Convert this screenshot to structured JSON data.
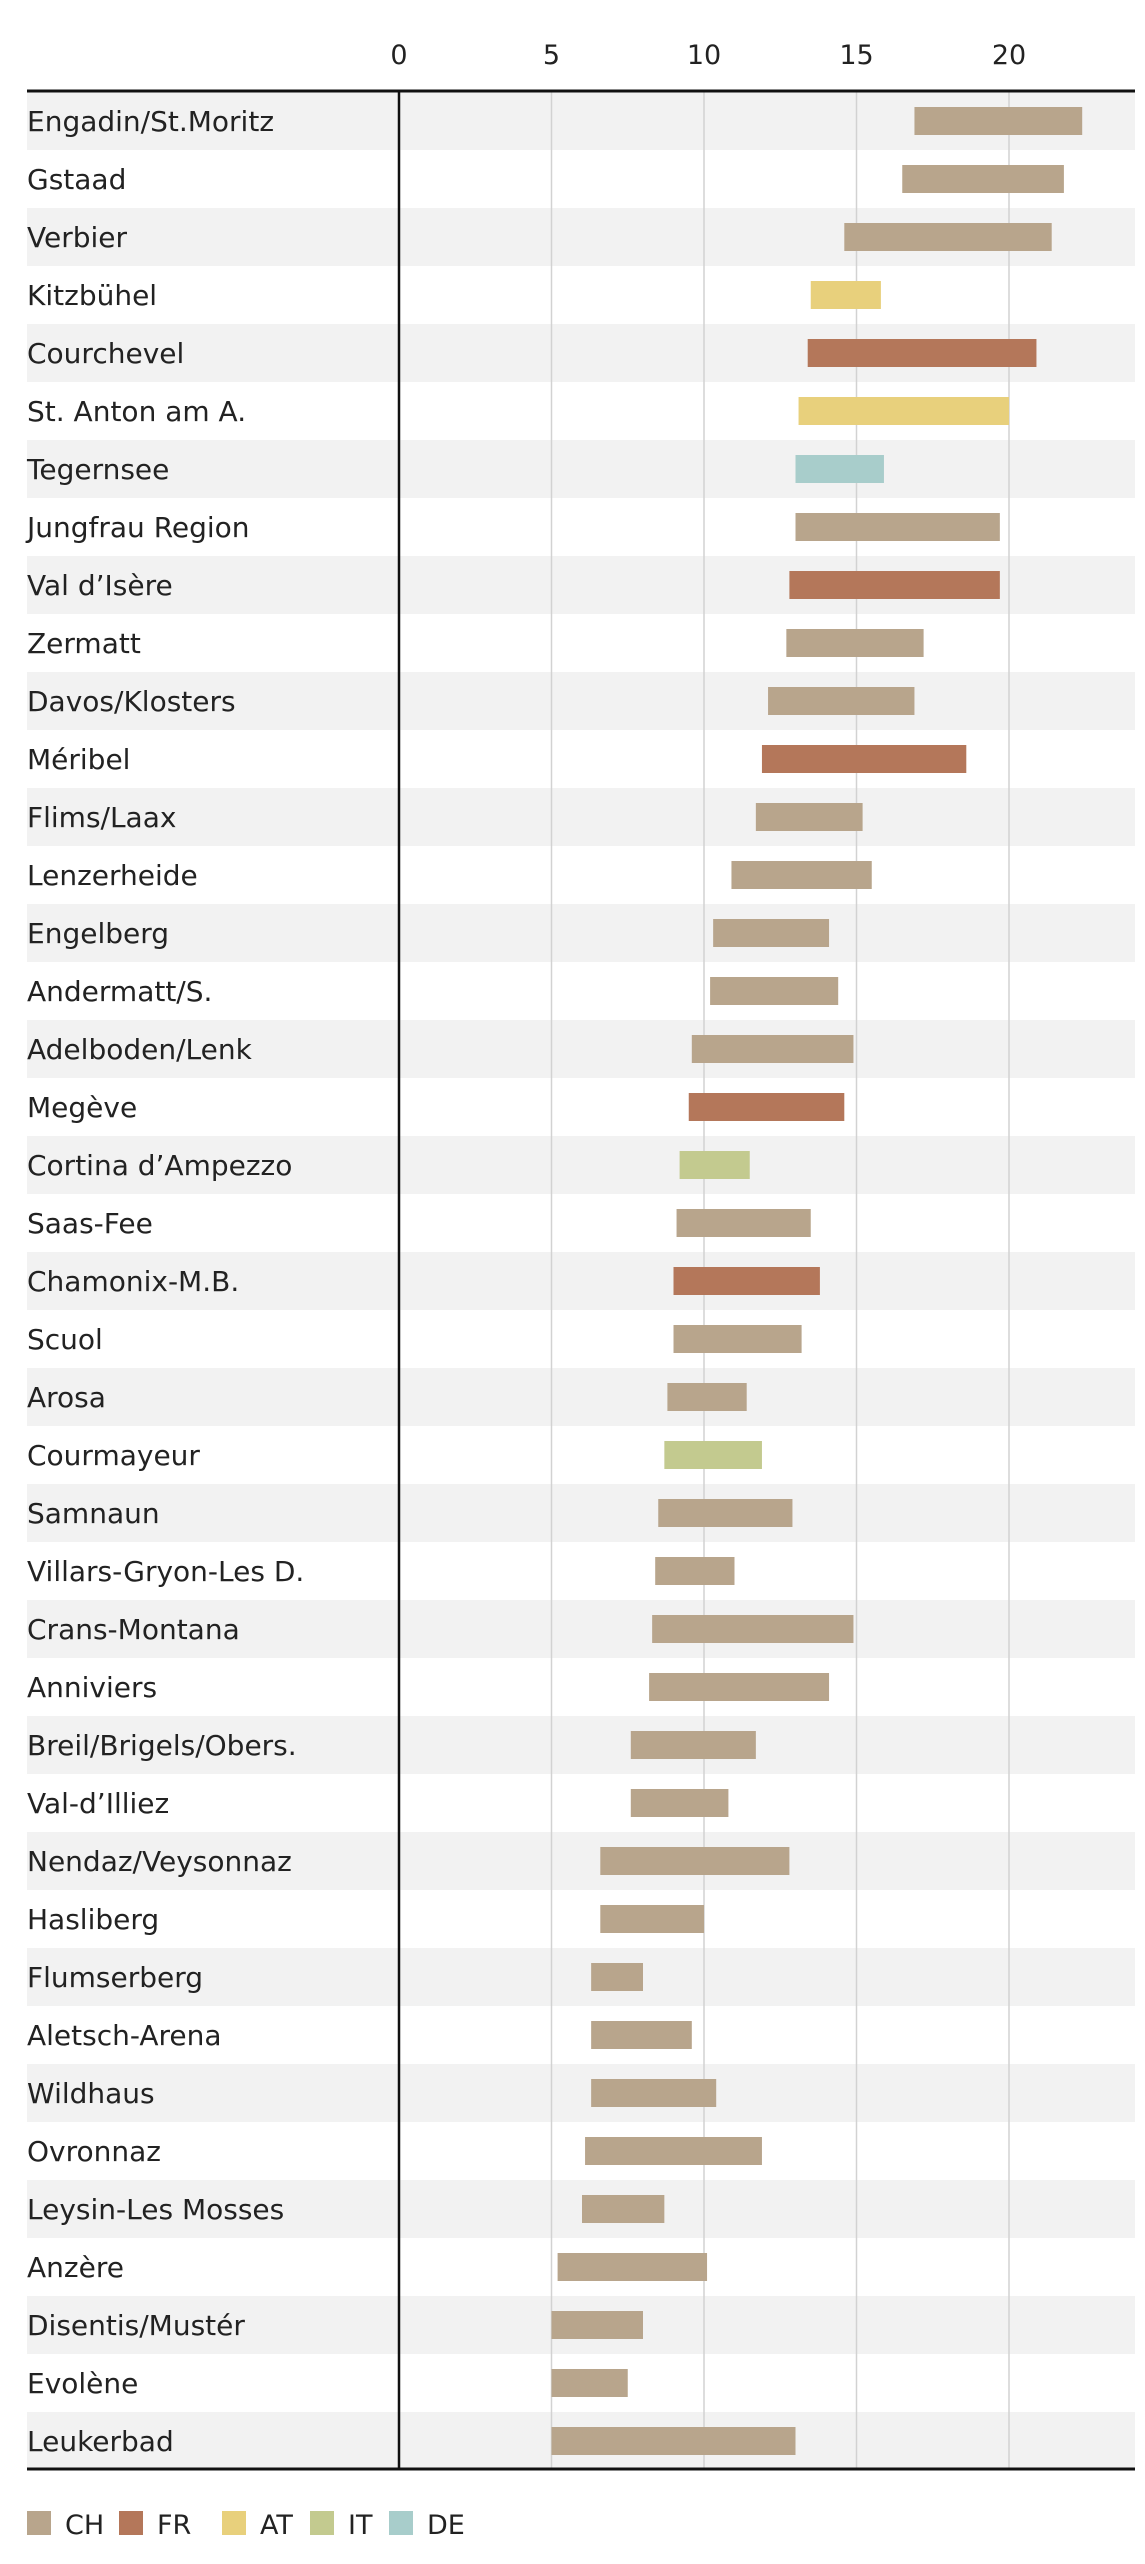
{
  "chart_data": {
    "type": "bar",
    "subtype": "floating-range-horizontal",
    "title": "",
    "xlabel": "",
    "ylabel": "",
    "xlim": [
      0,
      24.5
    ],
    "xticks": [
      0,
      5,
      10,
      15,
      20
    ],
    "grid": true,
    "legend_position": "bottom-left",
    "legend": [
      {
        "key": "CH",
        "label": "CH",
        "color": "#b8a58c"
      },
      {
        "key": "FR",
        "label": "FR",
        "color": "#b4775a"
      },
      {
        "key": "AT",
        "label": "AT",
        "color": "#e8d07c"
      },
      {
        "key": "IT",
        "label": "IT",
        "color": "#c3ca8f"
      },
      {
        "key": "DE",
        "label": "DE",
        "color": "#a8cdcb"
      }
    ],
    "rows": [
      {
        "label": "Engadin/St.Moritz",
        "country": "CH",
        "low": 16.9,
        "high": 22.4
      },
      {
        "label": "Gstaad",
        "country": "CH",
        "low": 16.5,
        "high": 21.8
      },
      {
        "label": "Verbier",
        "country": "CH",
        "low": 14.6,
        "high": 21.4
      },
      {
        "label": "Kitzbühel",
        "country": "AT",
        "low": 13.5,
        "high": 15.8
      },
      {
        "label": "Courchevel",
        "country": "FR",
        "low": 13.4,
        "high": 20.9
      },
      {
        "label": "St. Anton am A.",
        "country": "AT",
        "low": 13.1,
        "high": 20.0
      },
      {
        "label": "Tegernsee",
        "country": "DE",
        "low": 13.0,
        "high": 15.9
      },
      {
        "label": "Jungfrau Region",
        "country": "CH",
        "low": 13.0,
        "high": 19.7
      },
      {
        "label": "Val d’Isère",
        "country": "FR",
        "low": 12.8,
        "high": 19.7
      },
      {
        "label": "Zermatt",
        "country": "CH",
        "low": 12.7,
        "high": 17.2
      },
      {
        "label": "Davos/Klosters",
        "country": "CH",
        "low": 12.1,
        "high": 16.9
      },
      {
        "label": "Méribel",
        "country": "FR",
        "low": 11.9,
        "high": 18.6
      },
      {
        "label": "Flims/Laax",
        "country": "CH",
        "low": 11.7,
        "high": 15.2
      },
      {
        "label": "Lenzerheide",
        "country": "CH",
        "low": 10.9,
        "high": 15.5
      },
      {
        "label": "Engelberg",
        "country": "CH",
        "low": 10.3,
        "high": 14.1
      },
      {
        "label": "Andermatt/S.",
        "country": "CH",
        "low": 10.2,
        "high": 14.4
      },
      {
        "label": "Adelboden/Lenk",
        "country": "CH",
        "low": 9.6,
        "high": 14.9
      },
      {
        "label": "Megève",
        "country": "FR",
        "low": 9.5,
        "high": 14.6
      },
      {
        "label": "Cortina d’Ampezzo",
        "country": "IT",
        "low": 9.2,
        "high": 11.5
      },
      {
        "label": "Saas-Fee",
        "country": "CH",
        "low": 9.1,
        "high": 13.5
      },
      {
        "label": "Chamonix-M.B.",
        "country": "FR",
        "low": 9.0,
        "high": 13.8
      },
      {
        "label": "Scuol",
        "country": "CH",
        "low": 9.0,
        "high": 13.2
      },
      {
        "label": "Arosa",
        "country": "CH",
        "low": 8.8,
        "high": 11.4
      },
      {
        "label": "Courmayeur",
        "country": "IT",
        "low": 8.7,
        "high": 11.9
      },
      {
        "label": "Samnaun",
        "country": "CH",
        "low": 8.5,
        "high": 12.9
      },
      {
        "label": "Villars-Gryon-Les D.",
        "country": "CH",
        "low": 8.4,
        "high": 11.0
      },
      {
        "label": "Crans-Montana",
        "country": "CH",
        "low": 8.3,
        "high": 14.9
      },
      {
        "label": "Anniviers",
        "country": "CH",
        "low": 8.2,
        "high": 14.1
      },
      {
        "label": "Breil/Brigels/Obers.",
        "country": "CH",
        "low": 7.6,
        "high": 11.7
      },
      {
        "label": "Val-d’Illiez",
        "country": "CH",
        "low": 7.6,
        "high": 10.8
      },
      {
        "label": "Nendaz/Veysonnaz",
        "country": "CH",
        "low": 6.6,
        "high": 12.8
      },
      {
        "label": "Hasliberg",
        "country": "CH",
        "low": 6.6,
        "high": 10.0
      },
      {
        "label": "Flumserberg",
        "country": "CH",
        "low": 6.3,
        "high": 8.0
      },
      {
        "label": "Aletsch-Arena",
        "country": "CH",
        "low": 6.3,
        "high": 9.6
      },
      {
        "label": "Wildhaus",
        "country": "CH",
        "low": 6.3,
        "high": 10.4
      },
      {
        "label": "Ovronnaz",
        "country": "CH",
        "low": 6.1,
        "high": 11.9
      },
      {
        "label": "Leysin-Les Mosses",
        "country": "CH",
        "low": 6.0,
        "high": 8.7
      },
      {
        "label": "Anzère",
        "country": "CH",
        "low": 5.2,
        "high": 10.1
      },
      {
        "label": "Disentis/Mustér",
        "country": "CH",
        "low": 5.0,
        "high": 8.0
      },
      {
        "label": "Evolène",
        "country": "CH",
        "low": 5.0,
        "high": 7.5
      },
      {
        "label": "Leukerbad",
        "country": "CH",
        "low": 5.0,
        "high": 13.0
      }
    ]
  }
}
